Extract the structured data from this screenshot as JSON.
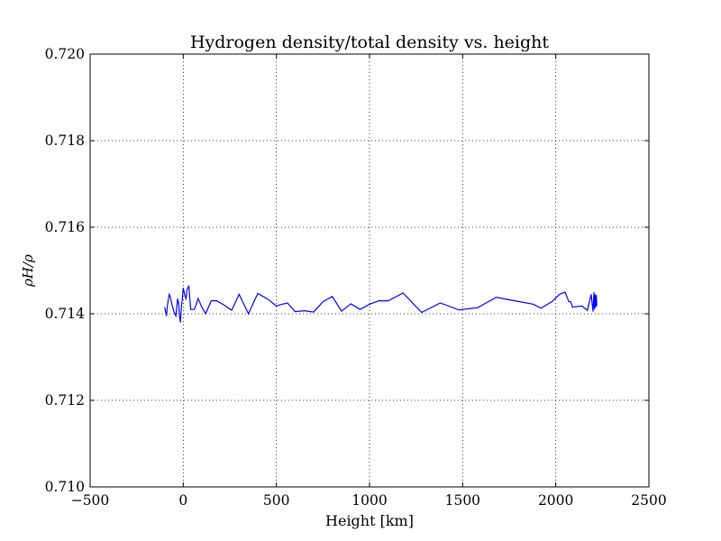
{
  "chart_data": {
    "type": "line",
    "title": "Hydrogen density/total density vs. height",
    "xlabel": "Height [km]",
    "ylabel": "ρH/ρ",
    "xlim": [
      -500,
      2500
    ],
    "ylim": [
      0.71,
      0.72
    ],
    "x_ticks": [
      -500,
      0,
      500,
      1000,
      1500,
      2000,
      2500
    ],
    "x_tick_labels": [
      "−500",
      "0",
      "500",
      "1000",
      "1500",
      "2000",
      "2500"
    ],
    "y_ticks": [
      0.71,
      0.712,
      0.714,
      0.716,
      0.718,
      0.72
    ],
    "y_tick_labels": [
      "0.710",
      "0.712",
      "0.714",
      "0.716",
      "0.718",
      "0.720"
    ],
    "grid": true,
    "grid_style": "dotted",
    "series": [
      {
        "color": "#0000ff",
        "x": [
          -100,
          -90,
          -85,
          -75,
          -70,
          -60,
          -50,
          -40,
          -30,
          -25,
          -20,
          -15,
          -10,
          -5,
          0,
          5,
          10,
          15,
          20,
          30,
          40,
          60,
          80,
          100,
          120,
          150,
          180,
          220,
          260,
          300,
          350,
          400,
          450,
          500,
          530,
          560,
          600,
          650,
          700,
          750,
          800,
          850,
          900,
          950,
          1000,
          1050,
          1100,
          1180,
          1280,
          1380,
          1480,
          1580,
          1680,
          1780,
          1880,
          1920,
          1980,
          2020,
          2050,
          2070,
          2080,
          2090,
          2100,
          2140,
          2170,
          2190,
          2200,
          2205,
          2208,
          2212,
          2215,
          2218,
          2220
        ],
        "y": [
          0.71415,
          0.71395,
          0.7142,
          0.71445,
          0.7144,
          0.7142,
          0.71405,
          0.71395,
          0.71435,
          0.71425,
          0.71395,
          0.7138,
          0.71415,
          0.71435,
          0.7146,
          0.7145,
          0.7144,
          0.71435,
          0.71455,
          0.71465,
          0.7141,
          0.7141,
          0.71435,
          0.71415,
          0.714,
          0.7143,
          0.7143,
          0.7142,
          0.71408,
          0.71445,
          0.714,
          0.71447,
          0.71435,
          0.71418,
          0.71422,
          0.71425,
          0.71405,
          0.71407,
          0.71404,
          0.71428,
          0.7144,
          0.71406,
          0.71423,
          0.7141,
          0.71422,
          0.7143,
          0.7143,
          0.71448,
          0.71403,
          0.71425,
          0.71409,
          0.71414,
          0.71438,
          0.7143,
          0.71422,
          0.71413,
          0.71428,
          0.71445,
          0.7145,
          0.71428,
          0.71428,
          0.71415,
          0.71416,
          0.71418,
          0.71408,
          0.71445,
          0.71405,
          0.7145,
          0.7141,
          0.71445,
          0.71415,
          0.71443,
          0.71418
        ]
      }
    ]
  }
}
